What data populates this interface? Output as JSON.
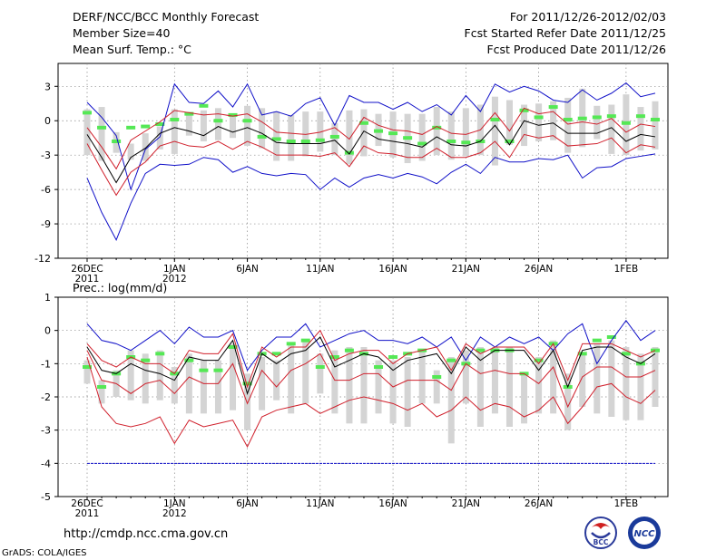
{
  "header": {
    "title": "DERF/NCC/BCC Monthly Forecast",
    "member_size": "Member Size=40",
    "variable": "Mean Surf. Temp.: °C",
    "period": "For 2011/12/26-2012/02/03",
    "start_date": "Fcst Started Refer Date 2011/12/25",
    "produced_date": "Fcst Produced Date 2011/12/26"
  },
  "footer": {
    "url": "http://cmdp.ncc.cma.gov.cn",
    "credit": "GrADS: COLA/IGES",
    "logo_left_text": "BCC",
    "logo_right_text": "NCC"
  },
  "colors": {
    "box": "#d4d4d4",
    "median": "#55e855",
    "mean": "#000000",
    "spread": "#d0202c",
    "extreme": "#1010c8",
    "grid": "#888888"
  },
  "chart_data": [
    {
      "type": "box",
      "title": "Mean Surf. Temp.: °C",
      "ylim": [
        -12,
        5
      ],
      "yticks": [
        3,
        0,
        -3,
        -6,
        -9,
        -12
      ],
      "x_tick_labels": [
        {
          "day": 1,
          "label": "26DEC",
          "sub": "2011"
        },
        {
          "day": 7,
          "label": "1JAN",
          "sub": "2012"
        },
        {
          "day": 12,
          "label": "6JAN",
          "sub": ""
        },
        {
          "day": 17,
          "label": "11JAN",
          "sub": ""
        },
        {
          "day": 22,
          "label": "16JAN",
          "sub": ""
        },
        {
          "day": 27,
          "label": "21JAN",
          "sub": ""
        },
        {
          "day": 32,
          "label": "26JAN",
          "sub": ""
        },
        {
          "day": 38,
          "label": "1FEB",
          "sub": ""
        }
      ],
      "days": 40,
      "max": [
        1.6,
        0.3,
        -1.3,
        -6,
        -2.5,
        -1.4,
        3.2,
        1.6,
        1.5,
        2.6,
        1.2,
        3.2,
        0.5,
        0.8,
        0.4,
        1.5,
        2,
        -0.4,
        2.2,
        1.6,
        1.6,
        1,
        1.6,
        0.8,
        1.4,
        0.5,
        2.2,
        0.8,
        3.2,
        2.5,
        3,
        2.6,
        1.8,
        1.6,
        2.7,
        1.8,
        2.4,
        3.3,
        2.1,
        2.4
      ],
      "p_high": [
        1,
        1.2,
        -1,
        -2,
        -1.1,
        -0.5,
        1,
        0.7,
        0.9,
        1.1,
        0.5,
        1.3,
        1.1,
        0.8,
        0.5,
        0.8,
        0.8,
        -0.2,
        0.9,
        1,
        0.6,
        0.8,
        0.6,
        0.6,
        1.2,
        0.8,
        1.1,
        1.4,
        2.1,
        1.8,
        1.4,
        1.5,
        1.7,
        2,
        2.8,
        1.3,
        1.4,
        2.3,
        1.2,
        1.7
      ],
      "median": [
        0.7,
        -0.6,
        -1.8,
        -0.6,
        -0.5,
        -0.3,
        0.1,
        0.6,
        1.3,
        0,
        0.5,
        0,
        -1.4,
        -1.6,
        -1.8,
        -1.8,
        -1.7,
        -1.4,
        -2.8,
        -0.2,
        -0.9,
        -1.1,
        -1.5,
        -2,
        -0.6,
        -1.8,
        -1.9,
        -1.8,
        0.1,
        -1.8,
        0.9,
        0.3,
        1.2,
        0.1,
        0.2,
        0.3,
        0.4,
        -0.2,
        0.4,
        0.1
      ],
      "mean": [
        -1.2,
        -3.2,
        -5.4,
        -3.2,
        -2.4,
        -1.1,
        -0.6,
        -0.9,
        -1.3,
        -0.5,
        -1,
        -0.6,
        -1.1,
        -1.9,
        -2,
        -2,
        -2,
        -1.7,
        -2.9,
        -0.9,
        -1.6,
        -1.8,
        -2,
        -2.3,
        -1.4,
        -2.1,
        -2.2,
        -1.8,
        -0.4,
        -2.1,
        0,
        -0.4,
        -0.2,
        -1.1,
        -1.1,
        -1.1,
        -0.6,
        -1.8,
        -1.2,
        -1.4
      ],
      "p_low": [
        -3,
        -3.5,
        -2.8,
        -3.4,
        -3.5,
        -2.5,
        -2.9,
        -1.3,
        -1.8,
        -1.7,
        -1.5,
        -2.2,
        -2.4,
        -3.5,
        -3.5,
        -3.1,
        -2.7,
        -3,
        -3.8,
        -3.1,
        -2.2,
        -3.2,
        -3.7,
        -3.5,
        -3,
        -3.4,
        -3.1,
        -3,
        -3.9,
        -2.1,
        -2.2,
        -1.8,
        -1.7,
        -2.8,
        -2.3,
        -1.6,
        -2.9,
        -3,
        -2.6,
        -2.5
      ],
      "min": [
        -5,
        -8,
        -10.4,
        -7.2,
        -4.6,
        -3.8,
        -3.9,
        -3.8,
        -3.2,
        -3.4,
        -4.5,
        -4,
        -4.6,
        -4.8,
        -4.6,
        -4.7,
        -6,
        -5,
        -5.8,
        -5,
        -4.7,
        -5,
        -4.6,
        -4.9,
        -5.5,
        -4.5,
        -3.8,
        -4.6,
        -3.2,
        -3.6,
        -3.6,
        -3.3,
        -3.4,
        -3,
        -5,
        -4.1,
        -4,
        -3.3,
        -3.1,
        -2.9
      ],
      "mean_plus_sd": [
        -0.6,
        -2.3,
        -4.2,
        -1.7,
        -0.9,
        -0.1,
        0.9,
        0.7,
        0.5,
        0.6,
        0.4,
        0.6,
        -0.1,
        -1,
        -1.1,
        -1.2,
        -1,
        -0.6,
        -1.6,
        0.3,
        -0.4,
        -0.8,
        -0.9,
        -1.2,
        -0.5,
        -1.1,
        -1.2,
        -0.8,
        0.7,
        -0.9,
        1.1,
        0.6,
        0.8,
        -0.3,
        -0.1,
        -0.3,
        0.2,
        -1,
        -0.3,
        -0.5
      ],
      "mean_minus_sd": [
        -2,
        -4.3,
        -6.5,
        -4.5,
        -3.6,
        -2.2,
        -1.8,
        -2.2,
        -2.3,
        -1.8,
        -2.5,
        -1.8,
        -2.3,
        -3,
        -3,
        -3,
        -3.1,
        -2.8,
        -4,
        -2.2,
        -2.8,
        -2.9,
        -3.2,
        -3.2,
        -2.4,
        -3.2,
        -3.2,
        -2.8,
        -1.8,
        -3.2,
        -1.2,
        -1.5,
        -1.3,
        -2.2,
        -2.1,
        -2,
        -1.5,
        -2.8,
        -2.1,
        -2.3
      ]
    },
    {
      "type": "box",
      "title": "Prec.: log(mm/d)",
      "ylim": [
        -5,
        1
      ],
      "yticks": [
        1,
        0,
        -1,
        -2,
        -3,
        -4,
        -5
      ],
      "x_tick_labels": [
        {
          "day": 1,
          "label": "26DEC",
          "sub": "2011"
        },
        {
          "day": 7,
          "label": "1JAN",
          "sub": "2012"
        },
        {
          "day": 12,
          "label": "6JAN",
          "sub": ""
        },
        {
          "day": 17,
          "label": "11JAN",
          "sub": ""
        },
        {
          "day": 22,
          "label": "16JAN",
          "sub": ""
        },
        {
          "day": 27,
          "label": "21JAN",
          "sub": ""
        },
        {
          "day": 32,
          "label": "26JAN",
          "sub": ""
        },
        {
          "day": 38,
          "label": "1FEB",
          "sub": ""
        }
      ],
      "days": 40,
      "reference_line": -4,
      "max": [
        0.2,
        -0.3,
        -0.4,
        -0.6,
        -0.3,
        0,
        -0.4,
        0.1,
        -0.2,
        -0.2,
        0,
        -1.2,
        -0.6,
        -0.2,
        -0.2,
        0.2,
        -0.5,
        -0.3,
        -0.1,
        0,
        -0.3,
        -0.3,
        -0.4,
        -0.2,
        -0.5,
        -0.2,
        -0.9,
        -0.2,
        -0.5,
        -0.2,
        -0.4,
        -0.2,
        -0.6,
        -0.1,
        0.2,
        -1,
        -0.3,
        0.3,
        -0.3,
        0
      ],
      "p_high": [
        -0.9,
        -1.5,
        -1.2,
        -0.6,
        -0.7,
        -0.6,
        -1.1,
        -0.7,
        -0.9,
        -0.9,
        -0.4,
        -1.3,
        -0.8,
        -0.9,
        -0.4,
        -0.3,
        -0.7,
        -0.6,
        -0.5,
        -0.5,
        -0.9,
        -0.9,
        -0.8,
        -0.6,
        -1.2,
        -0.8,
        -0.6,
        -0.5,
        -0.5,
        -0.5,
        -1.3,
        -0.8,
        -0.3,
        -1.3,
        -0.7,
        -0.4,
        -0.3,
        -0.5,
        -0.7,
        -0.5
      ],
      "median": [
        -1.1,
        -1.7,
        -1.3,
        -0.8,
        -0.9,
        -0.7,
        -1.3,
        -0.9,
        -1.2,
        -1.2,
        -0.5,
        -1.6,
        -0.7,
        -0.7,
        -0.4,
        -0.3,
        -1.1,
        -0.8,
        -0.6,
        -0.7,
        -1.1,
        -0.8,
        -0.7,
        -0.6,
        -1.4,
        -0.9,
        -1,
        -0.6,
        -0.6,
        -0.6,
        -1.3,
        -0.9,
        -0.4,
        -1.7,
        -0.7,
        -0.3,
        -0.2,
        -0.7,
        -1,
        -0.6
      ],
      "mean": [
        -0.5,
        -1.2,
        -1.3,
        -1,
        -1.2,
        -1.3,
        -1.5,
        -0.8,
        -0.9,
        -0.9,
        -0.3,
        -1.9,
        -0.7,
        -1,
        -0.7,
        -0.6,
        -0.2,
        -1.1,
        -0.9,
        -0.7,
        -0.8,
        -1.2,
        -0.9,
        -0.8,
        -0.7,
        -1.3,
        -0.5,
        -0.9,
        -0.6,
        -0.6,
        -0.6,
        -1.2,
        -0.6,
        -1.7,
        -0.6,
        -0.5,
        -0.5,
        -0.8,
        -1,
        -0.7
      ],
      "p_low": [
        -1.6,
        -2.2,
        -2,
        -2.1,
        -2.2,
        -2.1,
        -2.2,
        -2.5,
        -2.5,
        -2.5,
        -2.4,
        -3,
        -2.4,
        -2.1,
        -2.5,
        -2.2,
        -1.9,
        -2.5,
        -2.8,
        -2.8,
        -2.5,
        -2.8,
        -2.9,
        -2.2,
        -2.2,
        -3.4,
        -2.2,
        -2.9,
        -2.5,
        -2.9,
        -2.8,
        -2.5,
        -2.5,
        -3,
        -2.3,
        -2.5,
        -2.6,
        -2.7,
        -2.7,
        -2.3
      ],
      "min": [
        -0.6,
        -1.5,
        -1.6,
        -1.9,
        -1.6,
        -1.5,
        -1.9,
        -1.4,
        -1.6,
        -1.6,
        -1,
        -2.2,
        -1.2,
        -1.7,
        -1.2,
        -1,
        -0.7,
        -1.5,
        -1.5,
        -1.3,
        -1.3,
        -1.7,
        -1.5,
        -1.5,
        -1.5,
        -1.8,
        -1,
        -1.3,
        -1.2,
        -1.3,
        -1.3,
        -1.6,
        -1.1,
        -2.3,
        -1.4,
        -1.1,
        -1.1,
        -1.4,
        -1.4,
        -1.2
      ],
      "mean_plus_sd": [
        -0.4,
        -0.9,
        -1.1,
        -0.8,
        -1,
        -1,
        -1.3,
        -0.6,
        -0.7,
        -0.7,
        -0.1,
        -1.7,
        -0.5,
        -0.8,
        -0.5,
        -0.5,
        0,
        -0.9,
        -0.7,
        -0.6,
        -0.6,
        -1,
        -0.7,
        -0.6,
        -0.5,
        -1.2,
        -0.4,
        -0.7,
        -0.5,
        -0.5,
        -0.5,
        -1,
        -0.4,
        -1.5,
        -0.4,
        -0.4,
        -0.4,
        -0.6,
        -0.8,
        -0.6
      ],
      "mean_minus_sd": [
        -0.6,
        -1.5,
        -1.6,
        -1.9,
        -1.6,
        -1.5,
        -1.9,
        -1.4,
        -1.6,
        -1.6,
        -1,
        -2.2,
        -1.2,
        -1.7,
        -1.2,
        -1,
        -0.7,
        -1.5,
        -1.5,
        -1.3,
        -1.3,
        -1.7,
        -1.5,
        -1.5,
        -1.5,
        -1.8,
        -1,
        -1.3,
        -1.2,
        -1.3,
        -1.3,
        -1.6,
        -1.1,
        -2.3,
        -1.4,
        -1.1,
        -1.1,
        -1.4,
        -1.4,
        -1.2
      ],
      "lower_envelope": [
        -0.8,
        -2.3,
        -2.8,
        -2.9,
        -2.8,
        -2.6,
        -3.4,
        -2.7,
        -2.9,
        -2.8,
        -2.7,
        -3.5,
        -2.6,
        -2.4,
        -2.3,
        -2.2,
        -2.5,
        -2.3,
        -2.1,
        -2,
        -2.1,
        -2.2,
        -2.4,
        -2.2,
        -2.6,
        -2.4,
        -2,
        -2.4,
        -2.2,
        -2.3,
        -2.6,
        -2.4,
        -2,
        -2.8,
        -2.3,
        -1.7,
        -1.6,
        -2,
        -2.2,
        -1.8
      ]
    }
  ]
}
